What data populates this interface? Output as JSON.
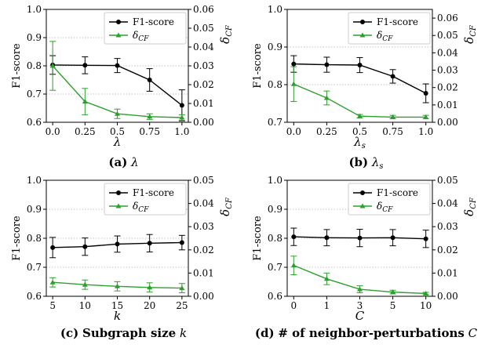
{
  "chart_data": [
    {
      "type": "line",
      "caption_prefix": "(a)",
      "caption_symbol": "λ",
      "xlabel": "λ",
      "ylabel_left": "F1-score",
      "ylabel_right": "δ",
      "ylabel_right_sub": "CF",
      "x": [
        0.0,
        0.25,
        0.5,
        0.75,
        1.0
      ],
      "x_ticks": [
        "0.0",
        "0.25",
        "0.5",
        "0.75",
        "1.0"
      ],
      "ylim_left": [
        0.6,
        1.0
      ],
      "y_ticks_left": [
        "0.6",
        "0.7",
        "0.8",
        "0.9",
        "1.0"
      ],
      "ylim_right": [
        0.0,
        0.06
      ],
      "y_ticks_right": [
        "0.00",
        "0.01",
        "0.02",
        "0.03",
        "0.04",
        "0.05",
        "0.06"
      ],
      "grid": "horizontal dotted",
      "legend_position": "top-right",
      "series": [
        {
          "name": "F1-score",
          "axis": "left",
          "color": "#000000",
          "marker": "circle",
          "values": [
            0.803,
            0.802,
            0.801,
            0.75,
            0.66
          ],
          "errors": [
            0.033,
            0.03,
            0.025,
            0.04,
            0.055
          ]
        },
        {
          "name": "δ",
          "name_sub": "CF",
          "axis": "right",
          "color": "#2ca02c",
          "marker": "triangle",
          "values": [
            0.03,
            0.011,
            0.0045,
            0.003,
            0.0025
          ],
          "errors": [
            0.013,
            0.007,
            0.0025,
            0.0015,
            0.0015
          ]
        }
      ]
    },
    {
      "type": "line",
      "caption_prefix": "(b)",
      "caption_symbol": "λ",
      "caption_symbol_sub": "s",
      "xlabel": "λ",
      "xlabel_sub": "s",
      "ylabel_left": "F1-score",
      "ylabel_right": "δ",
      "ylabel_right_sub": "CF",
      "x": [
        0.0,
        0.25,
        0.5,
        0.75,
        1.0
      ],
      "x_ticks": [
        "0.0",
        "0.25",
        "0.5",
        "0.75",
        "1.0"
      ],
      "ylim_left": [
        0.7,
        1.0
      ],
      "y_ticks_left": [
        "0.7",
        "0.8",
        "0.9",
        "1.0"
      ],
      "ylim_right": [
        0.0,
        0.065
      ],
      "y_ticks_right": [
        "0.00",
        "0.01",
        "0.02",
        "0.03",
        "0.04",
        "0.05",
        "0.06"
      ],
      "grid": "horizontal dotted",
      "legend_position": "top-right",
      "series": [
        {
          "name": "F1-score",
          "axis": "left",
          "color": "#000000",
          "marker": "circle",
          "values": [
            0.855,
            0.853,
            0.852,
            0.822,
            0.777
          ],
          "errors": [
            0.022,
            0.02,
            0.02,
            0.018,
            0.025
          ]
        },
        {
          "name": "δ",
          "name_sub": "CF",
          "axis": "right",
          "color": "#2ca02c",
          "marker": "triangle",
          "values": [
            0.022,
            0.014,
            0.0035,
            0.003,
            0.003
          ],
          "errors": [
            0.01,
            0.004,
            0.001,
            0.001,
            0.001
          ]
        }
      ]
    },
    {
      "type": "line",
      "caption_prefix": "(c)",
      "caption_text": "Subgraph size",
      "caption_symbol": "k",
      "xlabel": "k",
      "ylabel_left": "F1-score",
      "ylabel_right": "δ",
      "ylabel_right_sub": "CF",
      "x": [
        5,
        10,
        15,
        20,
        25
      ],
      "x_ticks": [
        "5",
        "10",
        "15",
        "20",
        "25"
      ],
      "ylim_left": [
        0.6,
        1.0
      ],
      "y_ticks_left": [
        "0.6",
        "0.7",
        "0.8",
        "0.9",
        "1.0"
      ],
      "ylim_right": [
        0.0,
        0.05
      ],
      "y_ticks_right": [
        "0.00",
        "0.01",
        "0.02",
        "0.03",
        "0.04",
        "0.05"
      ],
      "grid": "horizontal dotted",
      "legend_position": "top-right",
      "series": [
        {
          "name": "F1-score",
          "axis": "left",
          "color": "#000000",
          "marker": "circle",
          "values": [
            0.768,
            0.771,
            0.78,
            0.783,
            0.785
          ],
          "errors": [
            0.035,
            0.03,
            0.028,
            0.03,
            0.025
          ]
        },
        {
          "name": "δ",
          "name_sub": "CF",
          "axis": "right",
          "color": "#2ca02c",
          "marker": "triangle",
          "values": [
            0.006,
            0.005,
            0.0043,
            0.0038,
            0.0035
          ],
          "errors": [
            0.002,
            0.002,
            0.002,
            0.002,
            0.002
          ]
        }
      ]
    },
    {
      "type": "line",
      "caption_prefix": "(d)",
      "caption_text": "# of neighbor-perturbations",
      "caption_symbol": "C",
      "xlabel": "C",
      "ylabel_left": "F1-score",
      "ylabel_right": "δ",
      "ylabel_right_sub": "CF",
      "x": [
        0,
        1,
        3,
        5,
        10
      ],
      "x_ticks": [
        "0",
        "1",
        "3",
        "5",
        "10"
      ],
      "x_spacing": "categorical",
      "ylim_left": [
        0.6,
        1.0
      ],
      "y_ticks_left": [
        "0.6",
        "0.7",
        "0.8",
        "0.9",
        "1.0"
      ],
      "ylim_right": [
        0.0,
        0.05
      ],
      "y_ticks_right": [
        "0.00",
        "0.01",
        "0.02",
        "0.03",
        "0.04",
        "0.05"
      ],
      "grid": "horizontal dotted",
      "legend_position": "top-right",
      "series": [
        {
          "name": "F1-score",
          "axis": "left",
          "color": "#000000",
          "marker": "circle",
          "values": [
            0.805,
            0.802,
            0.801,
            0.802,
            0.798
          ],
          "errors": [
            0.03,
            0.028,
            0.03,
            0.028,
            0.03
          ]
        },
        {
          "name": "δ",
          "name_sub": "CF",
          "axis": "right",
          "color": "#2ca02c",
          "marker": "triangle",
          "values": [
            0.0133,
            0.0075,
            0.003,
            0.0018,
            0.0012
          ],
          "errors": [
            0.004,
            0.0025,
            0.0015,
            0.0008,
            0.0005
          ]
        }
      ]
    }
  ]
}
